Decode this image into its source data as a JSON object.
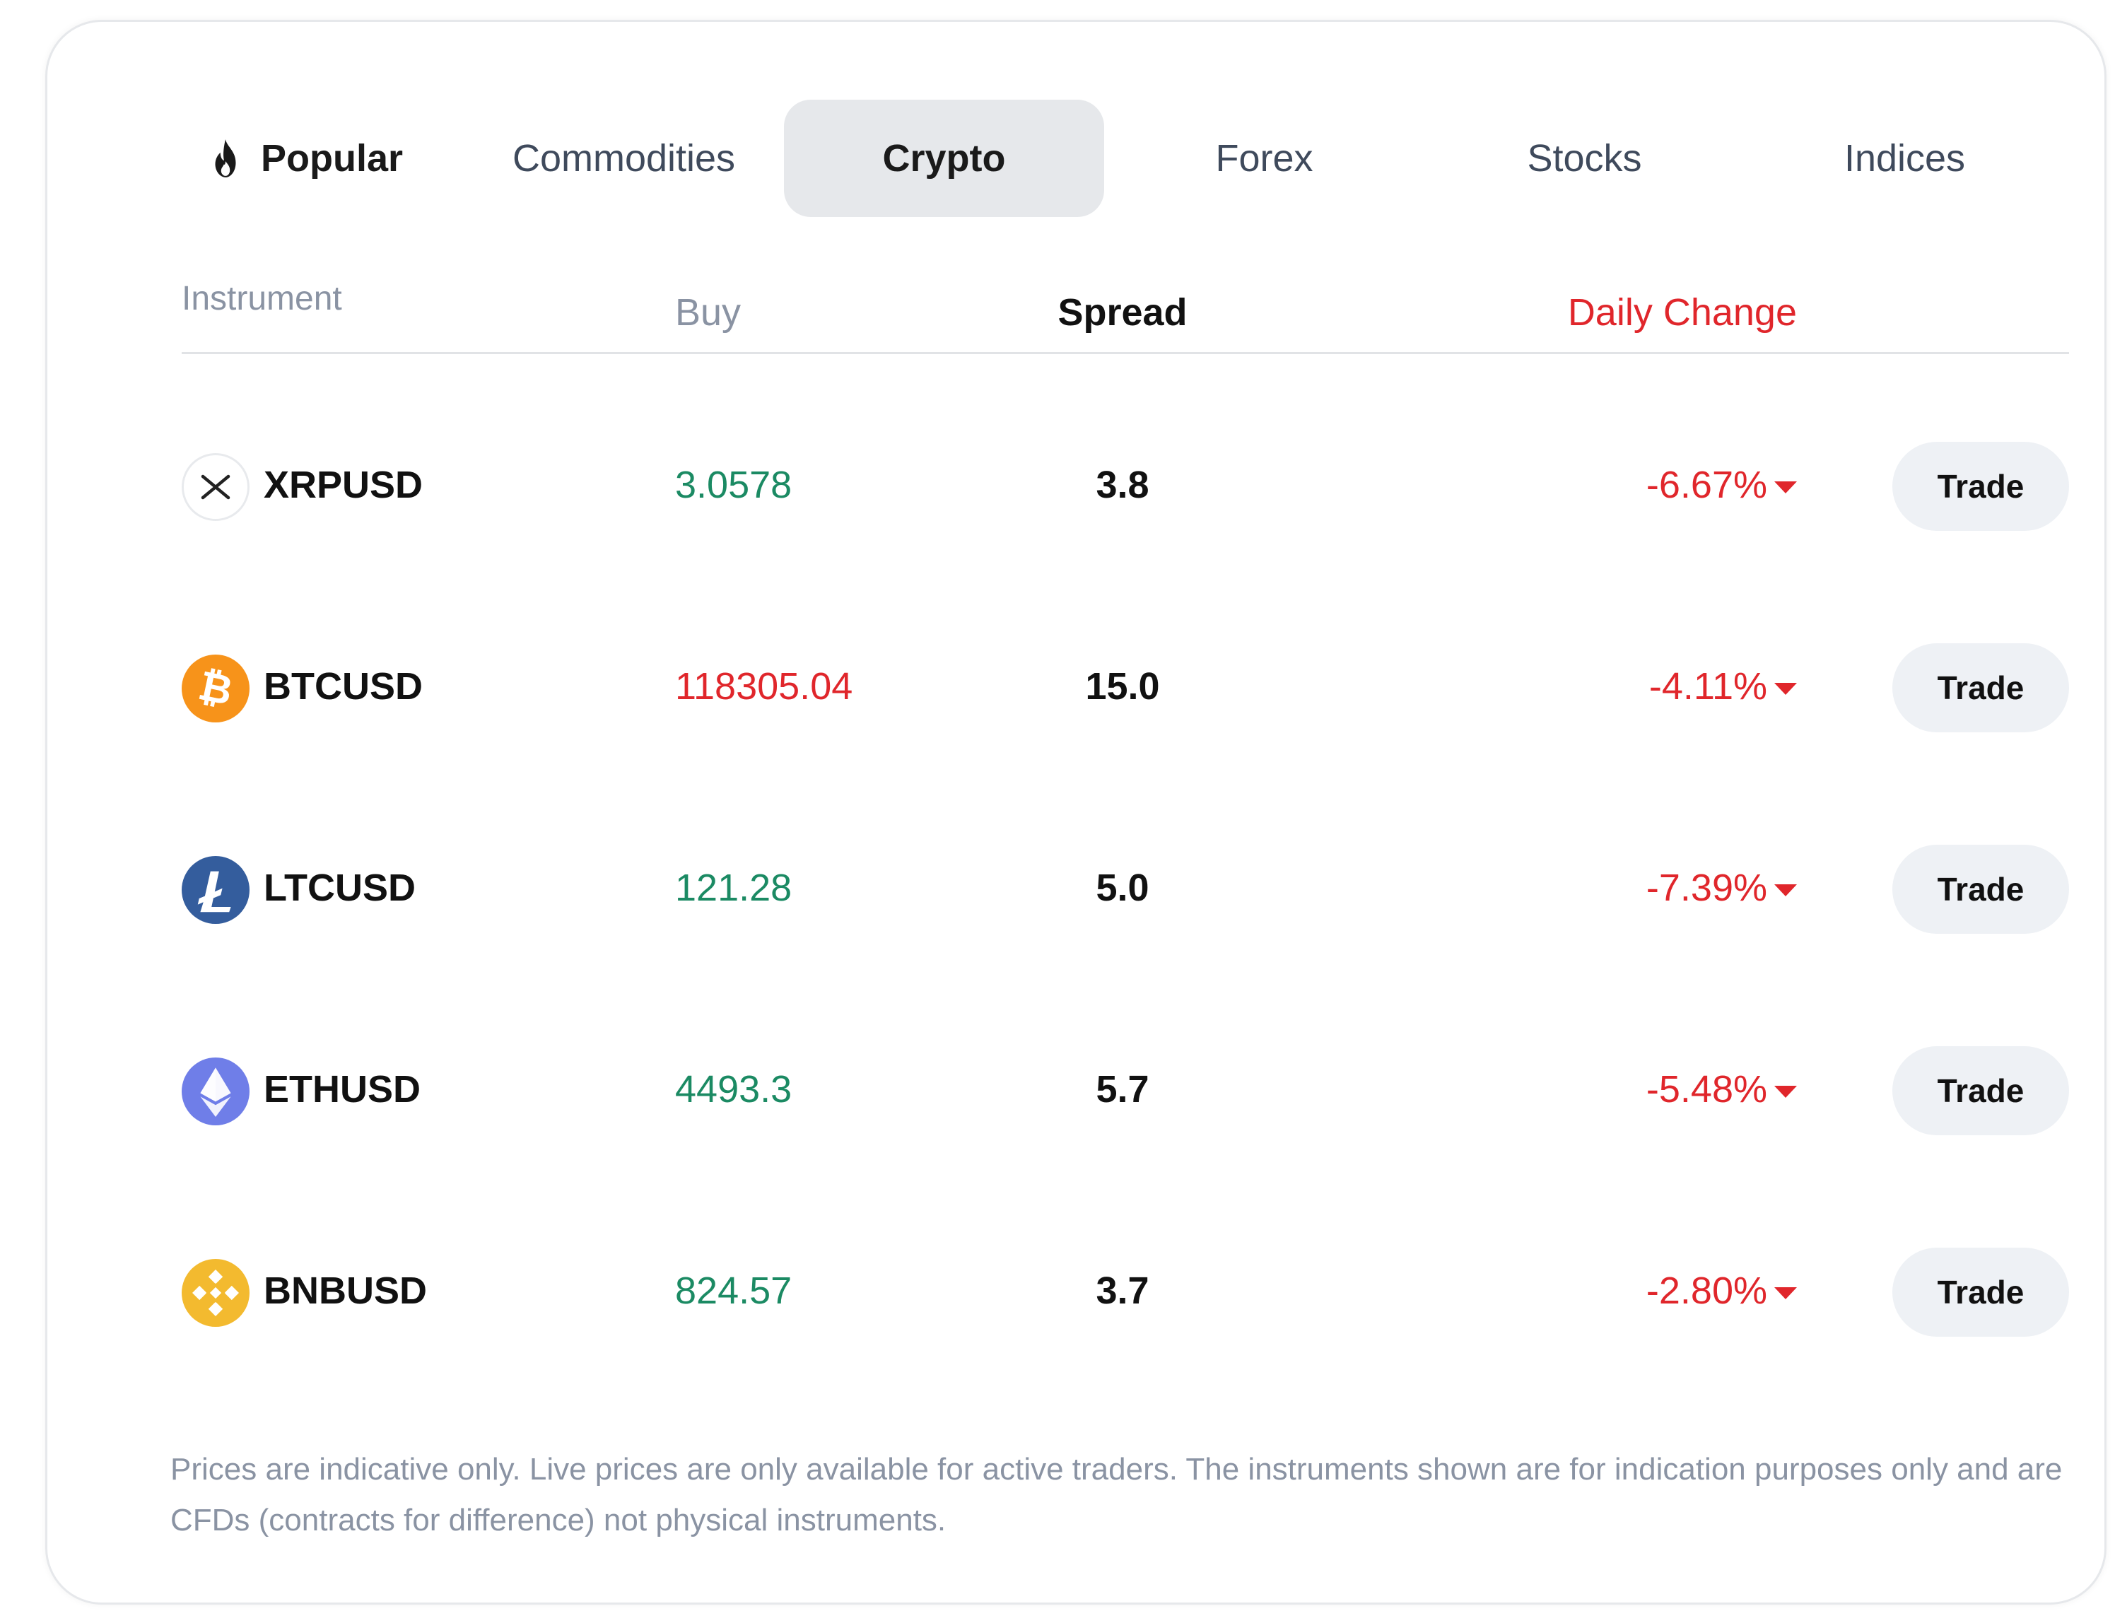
{
  "tabs": [
    {
      "label": "Popular",
      "icon": "fire-icon"
    },
    {
      "label": "Commodities"
    },
    {
      "label": "Crypto",
      "active": true
    },
    {
      "label": "Forex"
    },
    {
      "label": "Stocks"
    },
    {
      "label": "Indices"
    }
  ],
  "table": {
    "headers": {
      "instrument": "Instrument",
      "buy": "Buy",
      "spread": "Spread",
      "daily_change": "Daily Change"
    },
    "trade_label": "Trade",
    "rows": [
      {
        "symbol": "XRPUSD",
        "icon": "xrp-icon",
        "buy": "3.0578",
        "buy_direction": "up",
        "spread": "3.8",
        "daily_change": "-6.67%"
      },
      {
        "symbol": "BTCUSD",
        "icon": "bitcoin-icon",
        "buy": "118305.04",
        "buy_direction": "down",
        "spread": "15.0",
        "daily_change": "-4.11%"
      },
      {
        "symbol": "LTCUSD",
        "icon": "litecoin-icon",
        "buy": "121.28",
        "buy_direction": "up",
        "spread": "5.0",
        "daily_change": "-7.39%"
      },
      {
        "symbol": "ETHUSD",
        "icon": "ethereum-icon",
        "buy": "4493.3",
        "buy_direction": "up",
        "spread": "5.7",
        "daily_change": "-5.48%"
      },
      {
        "symbol": "BNBUSD",
        "icon": "bnb-icon",
        "buy": "824.57",
        "buy_direction": "up",
        "spread": "3.7",
        "daily_change": "-2.80%"
      }
    ]
  },
  "disclaimer": "Prices are indicative only. Live prices are only available for active traders. The instruments shown are for indication purposes only and are CFDs (contracts for difference) not physical instruments.",
  "colors": {
    "price_up": "#1b8a63",
    "price_down": "#e0262b",
    "active_tab_bg": "#e6e8eb",
    "button_bg": "#eef1f5",
    "muted_text": "#8a93a3"
  }
}
